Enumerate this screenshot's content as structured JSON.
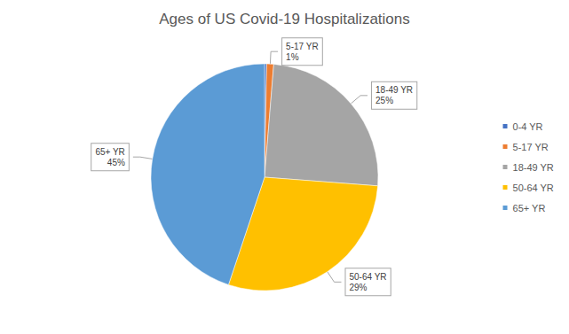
{
  "chart_data": {
    "type": "pie",
    "title": "Ages of US Covid-19 Hospitalizations",
    "categories": [
      "0-4 YR",
      "5-17 YR",
      "18-49 YR",
      "50-64 YR",
      "65+ YR"
    ],
    "values": [
      0.3,
      1,
      25,
      29,
      45
    ],
    "value_labels": [
      null,
      "1%",
      "25%",
      "29%",
      "45%"
    ],
    "colors": [
      "#4472c4",
      "#ed7d31",
      "#a5a5a5",
      "#ffc000",
      "#5b9bd5"
    ],
    "data_labels": true,
    "legend": "right"
  }
}
